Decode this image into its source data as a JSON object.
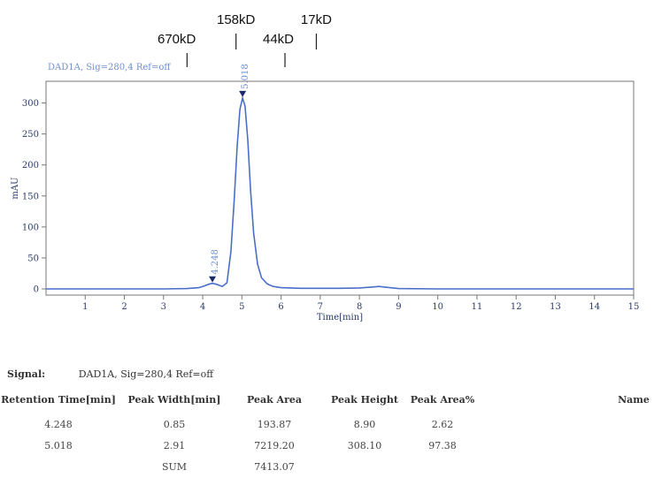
{
  "chart_data": {
    "type": "line",
    "signal_title": "DAD1A, Sig=280,4  Ref=off",
    "xlabel": "Time[min]",
    "ylabel": "mAU",
    "xlim": [
      0,
      15
    ],
    "ylim": [
      -10,
      335
    ],
    "x_ticks": [
      "1",
      "2",
      "3",
      "4",
      "5",
      "6",
      "7",
      "8",
      "9",
      "10",
      "11",
      "12",
      "13",
      "14",
      "15"
    ],
    "y_ticks": [
      "0",
      "50",
      "100",
      "150",
      "200",
      "250",
      "300"
    ],
    "series": [
      {
        "color": "#4a6fc9",
        "x": [
          0.0,
          1.0,
          2.0,
          3.0,
          3.6,
          3.9,
          4.05,
          4.15,
          4.248,
          4.35,
          4.5,
          4.62,
          4.72,
          4.8,
          4.88,
          4.95,
          5.018,
          5.08,
          5.15,
          5.22,
          5.3,
          5.4,
          5.5,
          5.65,
          5.8,
          6.0,
          6.5,
          7.0,
          7.5,
          8.0,
          8.3,
          8.5,
          8.7,
          9.0,
          10.0,
          11.0,
          12.0,
          13.0,
          14.0,
          15.0
        ],
        "y": [
          0,
          0,
          0,
          0,
          0.5,
          2,
          5,
          7.5,
          8.9,
          7.5,
          4,
          10,
          60,
          140,
          230,
          290,
          308.1,
          295,
          240,
          160,
          90,
          40,
          18,
          8,
          4,
          2,
          1,
          1,
          1,
          1.5,
          3,
          4,
          2.5,
          0.5,
          0,
          0,
          0,
          0,
          0,
          0
        ]
      }
    ],
    "peak_labels": [
      {
        "x": 4.248,
        "y": 8.9,
        "text": "4.248"
      },
      {
        "x": 5.018,
        "y": 308.1,
        "text": "5.018"
      }
    ],
    "markers": [
      {
        "text": "670kD",
        "x": 3.6
      },
      {
        "text": "158kD",
        "x": 4.85
      },
      {
        "text": "44kD",
        "x": 6.1
      },
      {
        "text": "17kD",
        "x": 6.9
      }
    ]
  },
  "table": {
    "signal_label": "Signal:",
    "signal_value": "DAD1A, Sig=280,4  Ref=off",
    "headers": [
      "Retention Time[min]",
      "Peak Width[min]",
      "Peak Area",
      "Peak Height",
      "Peak Area%",
      "Name"
    ],
    "rows": [
      [
        "4.248",
        "0.85",
        "193.87",
        "8.90",
        "2.62",
        ""
      ],
      [
        "5.018",
        "2.91",
        "7219.20",
        "308.10",
        "97.38",
        ""
      ],
      [
        "",
        "SUM",
        "7413.07",
        "",
        "",
        ""
      ]
    ]
  }
}
